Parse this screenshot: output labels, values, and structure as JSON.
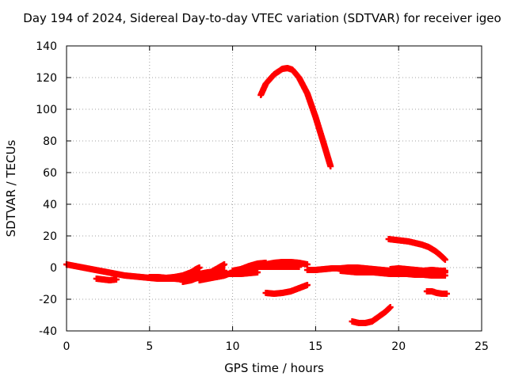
{
  "chart_data": {
    "type": "scatter",
    "title": "Day 194 of 2024, Sidereal Day-to-day VTEC variation (SDTVAR) for receiver igeo",
    "xlabel": "GPS time / hours",
    "ylabel": "SDTVAR / TECUs",
    "xlim": [
      0,
      25
    ],
    "ylim": [
      -40,
      140
    ],
    "x_ticks": [
      0,
      5,
      10,
      15,
      20,
      25
    ],
    "y_ticks": [
      -40,
      -20,
      0,
      20,
      40,
      60,
      80,
      100,
      120,
      140
    ],
    "grid": true,
    "marker": "plus",
    "color": "#ff0000",
    "series": [
      {
        "x": [
          0.0,
          0.5,
          1.0,
          1.5,
          2.0,
          2.5,
          3.0,
          3.5,
          4.0,
          4.5,
          5.0,
          5.5,
          6.0,
          6.5,
          7.0,
          7.5
        ],
        "y": [
          2,
          1,
          0,
          -1,
          -2,
          -3,
          -4,
          -5,
          -5.5,
          -6,
          -6.5,
          -7,
          -7,
          -7,
          -7.5,
          -8
        ]
      },
      {
        "x": [
          1.8,
          2.2,
          2.6,
          3.0
        ],
        "y": [
          -7,
          -7.5,
          -8,
          -7.5
        ]
      },
      {
        "x": [
          5.0,
          5.5,
          6.0,
          6.5,
          7.0,
          7.5,
          8.0,
          8.5,
          9.0,
          9.5
        ],
        "y": [
          -6,
          -6,
          -6.5,
          -6,
          -5.5,
          -5,
          -4,
          -3,
          -2.5,
          -2
        ]
      },
      {
        "x": [
          6.0,
          6.5,
          7.0,
          7.5,
          7.8,
          8.0
        ],
        "y": [
          -7,
          -6,
          -5,
          -3,
          -1,
          0
        ]
      },
      {
        "x": [
          7.0,
          7.5,
          8.0,
          8.5,
          9.0,
          9.5
        ],
        "y": [
          -9,
          -8,
          -6,
          -4,
          -1,
          2
        ]
      },
      {
        "x": [
          8.0,
          8.5,
          9.0,
          9.5,
          10.0,
          10.5,
          11.0,
          11.5,
          12.0,
          12.5,
          13.0,
          13.5,
          14.0
        ],
        "y": [
          -8,
          -7,
          -6,
          -5,
          -3,
          -1,
          0,
          0.5,
          0.5,
          0.5,
          0.5,
          0.5,
          0.5
        ]
      },
      {
        "x": [
          9.0,
          9.5,
          10.0,
          10.5,
          11.0,
          11.5,
          12.0
        ],
        "y": [
          -6,
          -5,
          -3,
          -1,
          1,
          2.5,
          3
        ]
      },
      {
        "x": [
          10.0,
          10.5,
          11.0,
          11.5,
          12.0,
          12.5,
          13.0,
          13.5,
          14.0,
          14.5
        ],
        "y": [
          -2,
          -1,
          0,
          1,
          2,
          3,
          3.5,
          3.5,
          3,
          2
        ]
      },
      {
        "x": [
          9.5,
          10.0,
          10.5,
          11.0,
          11.5
        ],
        "y": [
          -4,
          -4,
          -4,
          -3.5,
          -3
        ]
      },
      {
        "x": [
          11.7,
          12.0,
          12.5,
          13.0,
          13.3,
          13.6,
          14.0,
          14.5,
          15.0,
          15.5,
          15.9
        ],
        "y": [
          109,
          116,
          122,
          125.5,
          126,
          125,
          120,
          110,
          95,
          78,
          64
        ]
      },
      {
        "x": [
          12.0,
          12.5,
          13.0,
          13.5,
          14.0,
          14.5
        ],
        "y": [
          -16,
          -16.5,
          -16,
          -15,
          -13,
          -11
        ]
      },
      {
        "x": [
          14.5,
          15.0,
          15.5,
          16.0,
          16.5,
          17.0,
          17.5,
          18.0,
          18.5,
          19.0,
          19.5,
          20.0,
          20.5,
          21.0,
          21.5,
          22.0,
          22.5,
          22.8
        ],
        "y": [
          -1.5,
          -1.5,
          -1,
          -0.5,
          -0.5,
          0,
          0,
          -0.5,
          -1,
          -1.5,
          -2,
          -2.5,
          -3,
          -3,
          -3,
          -3,
          -3,
          -3
        ]
      },
      {
        "x": [
          16.5,
          17.0,
          17.5,
          18.0,
          18.5,
          19.0,
          19.5,
          20.0,
          20.5,
          21.0,
          21.5,
          22.0,
          22.5,
          22.8
        ],
        "y": [
          -2,
          -2.5,
          -3,
          -3,
          -3,
          -3.5,
          -4,
          -4,
          -4,
          -4.5,
          -4.5,
          -5,
          -5,
          -5
        ]
      },
      {
        "x": [
          19.5,
          20.0,
          20.5,
          21.0,
          21.5,
          22.0,
          22.5,
          22.8
        ],
        "y": [
          -1,
          -0.5,
          -1,
          -1.5,
          -2,
          -1.5,
          -2,
          -2
        ]
      },
      {
        "x": [
          19.4,
          19.8,
          20.2,
          20.6,
          21.0,
          21.4,
          21.8,
          22.2,
          22.5,
          22.8
        ],
        "y": [
          18,
          17.5,
          17,
          16.5,
          15.5,
          14.5,
          13,
          10.5,
          8,
          5
        ]
      },
      {
        "x": [
          17.2,
          17.6,
          18.0,
          18.4,
          18.8,
          19.2,
          19.5
        ],
        "y": [
          -34,
          -35,
          -35,
          -34,
          -31,
          -28,
          -25
        ]
      },
      {
        "x": [
          21.7,
          22.0,
          22.3,
          22.6,
          22.9
        ],
        "y": [
          -15,
          -15,
          -16,
          -16.5,
          -16.5
        ]
      }
    ]
  }
}
